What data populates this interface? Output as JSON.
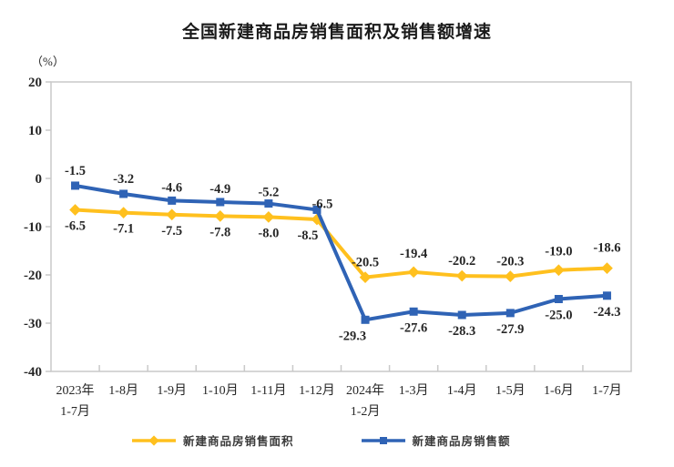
{
  "title": "全国新建商品房销售面积及销售额增速",
  "unit_label": "（%）",
  "chart_data": {
    "type": "line",
    "categories": [
      "2023年\n1-7月",
      "1-8月",
      "1-9月",
      "1-10月",
      "1-11月",
      "1-12月",
      "2024年\n1-2月",
      "1-3月",
      "1-4月",
      "1-5月",
      "1-6月",
      "1-7月"
    ],
    "series": [
      {
        "name": "新建商品房销售面积",
        "color": "#FFC01E",
        "marker": "diamond",
        "values": [
          -6.5,
          -7.1,
          -7.5,
          -7.8,
          -8.0,
          -8.5,
          -20.5,
          -19.4,
          -20.2,
          -20.3,
          -19.0,
          -18.6
        ],
        "labels": [
          "-6.5",
          "-7.1",
          "-7.5",
          "-7.8",
          "-8.0",
          "-8.5",
          "-20.5",
          "-19.4",
          "-20.2",
          "-20.3",
          "-19.0",
          "-18.6"
        ],
        "label_side": [
          "below",
          "below",
          "below",
          "below",
          "below",
          "below",
          "above",
          "above",
          "above",
          "above",
          "above",
          "above"
        ],
        "label_dx": [
          0,
          0,
          0,
          0,
          0,
          -10,
          0,
          0,
          0,
          0,
          0,
          0
        ],
        "label_dy": [
          0,
          0,
          0,
          0,
          0,
          0,
          0,
          -4,
          0,
          0,
          -4,
          -6
        ]
      },
      {
        "name": "新建商品房销售额",
        "color": "#2F63B5",
        "marker": "square",
        "values": [
          -1.5,
          -3.2,
          -4.6,
          -4.9,
          -5.2,
          -6.5,
          -29.3,
          -27.6,
          -28.3,
          -27.9,
          -25.0,
          -24.3
        ],
        "labels": [
          "-1.5",
          "-3.2",
          "-4.6",
          "-4.9",
          "-5.2",
          "-6.5",
          "-29.3",
          "-27.6",
          "-28.3",
          "-27.9",
          "-25.0",
          "-24.3"
        ],
        "label_side": [
          "above",
          "above",
          "above",
          "above",
          "above",
          "above",
          "below",
          "below",
          "below",
          "below",
          "below",
          "below"
        ],
        "label_dx": [
          0,
          0,
          0,
          0,
          0,
          6,
          -14,
          0,
          0,
          0,
          0,
          0
        ],
        "label_dy": [
          0,
          0,
          2,
          2,
          4,
          10,
          0,
          0,
          0,
          0,
          0,
          0
        ]
      }
    ],
    "ylim": [
      -40,
      20
    ],
    "y_ticks": [
      20,
      10,
      0,
      -10,
      -20,
      -30,
      -40
    ],
    "grid": false,
    "legend_position": "bottom",
    "axis_color": "#c9c9c9",
    "label_color": "#262626"
  }
}
